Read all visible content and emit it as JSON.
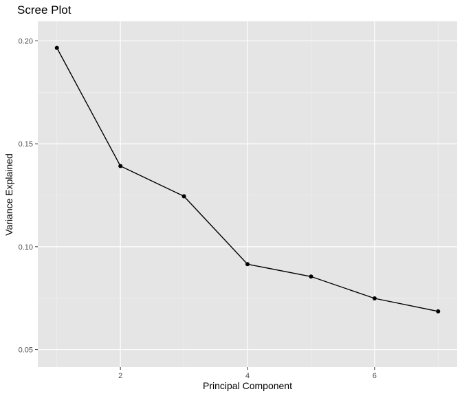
{
  "chart_data": {
    "type": "line",
    "title": "Scree Plot",
    "xlabel": "Principal Component",
    "ylabel": "Variance Explained",
    "x": [
      1,
      2,
      3,
      4,
      5,
      6,
      7
    ],
    "series": [
      {
        "values": [
          0.1966,
          0.1392,
          0.1245,
          0.0915,
          0.0855,
          0.0749,
          0.0686
        ]
      }
    ],
    "xlim": [
      0.7,
      7.3
    ],
    "ylim": [
      0.0415,
      0.2095
    ],
    "x_ticks": [
      2,
      4,
      6
    ],
    "x_tick_labels": [
      "2",
      "4",
      "6"
    ],
    "y_ticks": [
      0.05,
      0.1,
      0.15,
      0.2
    ],
    "y_tick_labels": [
      "0.05",
      "0.10",
      "0.15",
      "0.20"
    ],
    "grid": true,
    "colors": {
      "panel_background": "#e5e5e5",
      "grid_major": "#ffffff",
      "grid_minor": "#f2f2f2",
      "line": "#000000",
      "point": "#000000",
      "tick_text": "#4d4d4d"
    }
  }
}
